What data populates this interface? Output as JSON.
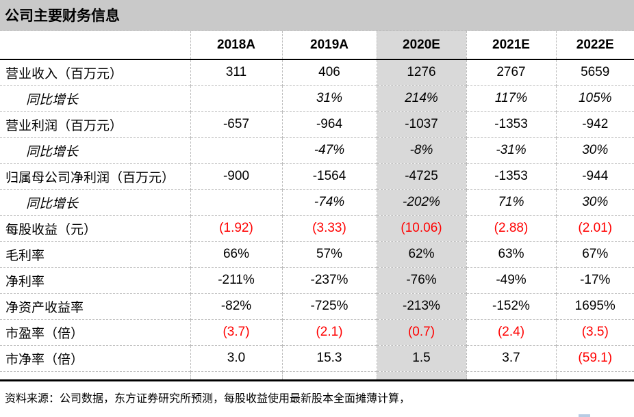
{
  "title": "公司主要财务信息",
  "table": {
    "columns": [
      "2018A",
      "2019A",
      "2020E",
      "2021E",
      "2022E"
    ],
    "highlight_column": "2020E",
    "highlight_column_index": 2,
    "rows": [
      {
        "label": "营业收入（百万元）",
        "style": "normal",
        "values": [
          "311",
          "406",
          "1276",
          "2767",
          "5659"
        ],
        "red": [
          false,
          false,
          false,
          false,
          false
        ]
      },
      {
        "label": "同比增长",
        "style": "growth",
        "values": [
          "",
          "31%",
          "214%",
          "117%",
          "105%"
        ],
        "red": [
          false,
          false,
          false,
          false,
          false
        ]
      },
      {
        "label": "营业利润（百万元）",
        "style": "normal",
        "values": [
          "-657",
          "-964",
          "-1037",
          "-1353",
          "-942"
        ],
        "red": [
          false,
          false,
          false,
          false,
          false
        ]
      },
      {
        "label": "同比增长",
        "style": "growth",
        "values": [
          "",
          "-47%",
          "-8%",
          "-31%",
          "30%"
        ],
        "red": [
          false,
          false,
          false,
          false,
          false
        ]
      },
      {
        "label": "归属母公司净利润（百万元）",
        "style": "normal",
        "values": [
          "-900",
          "-1564",
          "-4725",
          "-1353",
          "-944"
        ],
        "red": [
          false,
          false,
          false,
          false,
          false
        ]
      },
      {
        "label": "同比增长",
        "style": "growth",
        "values": [
          "",
          "-74%",
          "-202%",
          "71%",
          "30%"
        ],
        "red": [
          false,
          false,
          false,
          false,
          false
        ]
      },
      {
        "label": "每股收益（元）",
        "style": "normal",
        "values": [
          "(1.92)",
          "(3.33)",
          "(10.06)",
          "(2.88)",
          "(2.01)"
        ],
        "red": [
          true,
          true,
          true,
          true,
          true
        ]
      },
      {
        "label": "毛利率",
        "style": "normal",
        "values": [
          "66%",
          "57%",
          "62%",
          "63%",
          "67%"
        ],
        "red": [
          false,
          false,
          false,
          false,
          false
        ]
      },
      {
        "label": "净利率",
        "style": "normal",
        "values": [
          "-211%",
          "-237%",
          "-76%",
          "-49%",
          "-17%"
        ],
        "red": [
          false,
          false,
          false,
          false,
          false
        ]
      },
      {
        "label": "净资产收益率",
        "style": "normal",
        "values": [
          "-82%",
          "-725%",
          "-213%",
          "-152%",
          "1695%"
        ],
        "red": [
          false,
          false,
          false,
          false,
          false
        ]
      },
      {
        "label": "市盈率（倍）",
        "style": "normal",
        "values": [
          "(3.7)",
          "(2.1)",
          "(0.7)",
          "(2.4)",
          "(3.5)"
        ],
        "red": [
          true,
          true,
          true,
          true,
          true
        ]
      },
      {
        "label": "市净率（倍）",
        "style": "normal",
        "values": [
          "3.0",
          "15.3",
          "1.5",
          "3.7",
          "(59.1)"
        ],
        "red": [
          false,
          false,
          false,
          false,
          true
        ]
      }
    ]
  },
  "footer": {
    "source_note": "资料来源：公司数据，东方证券研究所预测，每股收益使用最新股本全面摊薄计算，"
  },
  "colors": {
    "title_bar_bg": "#c9c9c9",
    "highlight_col_bg": "#d9d9d9",
    "negative_red": "#ff0000",
    "dashed_border": "#bdbdbd",
    "solid_border": "#000000",
    "bottom_accent_blue": "#b8cce4"
  }
}
